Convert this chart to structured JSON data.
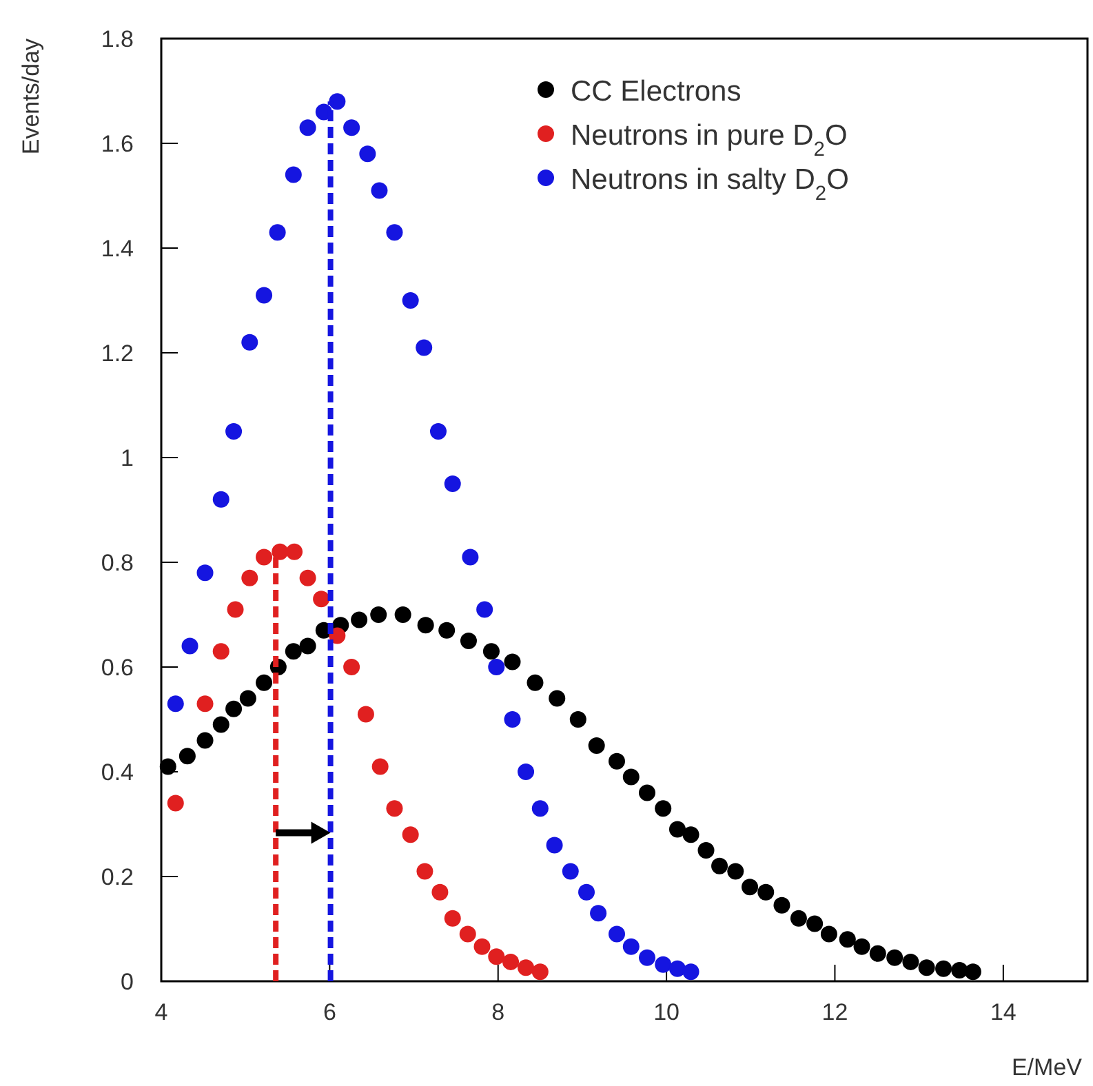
{
  "chart_data": {
    "type": "scatter",
    "xlabel": "E/MeV",
    "ylabel": "Events/day",
    "xlim": [
      4,
      15
    ],
    "xticks": [
      4,
      6,
      8,
      10,
      12,
      14
    ],
    "ylim": [
      0,
      1.8
    ],
    "yticks": [
      0,
      0.2,
      0.4,
      0.6,
      0.8,
      1,
      1.2,
      1.4,
      1.6,
      1.8
    ],
    "grid": false,
    "legend": "top right",
    "marker": "circle",
    "series": [
      {
        "name": "CC Electrons",
        "color": "#000000",
        "x": [
          4.08,
          4.31,
          4.52,
          4.71,
          4.86,
          5.03,
          5.22,
          5.39,
          5.57,
          5.74,
          5.93,
          6.13,
          6.35,
          6.58,
          6.87,
          7.14,
          7.39,
          7.65,
          7.92,
          8.17,
          8.44,
          8.7,
          8.95,
          9.17,
          9.41,
          9.58,
          9.77,
          9.96,
          10.13,
          10.29,
          10.47,
          10.63,
          10.82,
          10.99,
          11.18,
          11.37,
          11.57,
          11.76,
          11.93,
          12.15,
          12.32,
          12.51,
          12.71,
          12.9,
          13.09,
          13.29,
          13.48,
          13.64
        ],
        "values": [
          0.41,
          0.43,
          0.46,
          0.49,
          0.52,
          0.54,
          0.57,
          0.6,
          0.63,
          0.64,
          0.67,
          0.68,
          0.69,
          0.7,
          0.7,
          0.68,
          0.67,
          0.65,
          0.63,
          0.61,
          0.57,
          0.54,
          0.5,
          0.45,
          0.42,
          0.39,
          0.36,
          0.33,
          0.29,
          0.28,
          0.25,
          0.22,
          0.21,
          0.18,
          0.17,
          0.145,
          0.12,
          0.11,
          0.09,
          0.08,
          0.066,
          0.053,
          0.045,
          0.037,
          0.026,
          0.024,
          0.021,
          0.018
        ]
      },
      {
        "name": "Neutrons in pure D$_{2}$O",
        "color": "#e02020",
        "x": [
          4.17,
          4.52,
          4.71,
          4.88,
          5.05,
          5.22,
          5.41,
          5.58,
          5.74,
          5.9,
          6.09,
          6.26,
          6.43,
          6.6,
          6.77,
          6.96,
          7.13,
          7.31,
          7.46,
          7.64,
          7.81,
          7.98,
          8.15,
          8.33,
          8.5
        ],
        "values": [
          0.34,
          0.53,
          0.63,
          0.71,
          0.77,
          0.81,
          0.82,
          0.82,
          0.77,
          0.73,
          0.66,
          0.6,
          0.51,
          0.41,
          0.33,
          0.28,
          0.21,
          0.17,
          0.12,
          0.09,
          0.066,
          0.047,
          0.037,
          0.026,
          0.018
        ]
      },
      {
        "name": "Neutrons in salty D$_{2}$O",
        "color": "#1515e0",
        "x": [
          4.17,
          4.34,
          4.52,
          4.71,
          4.86,
          5.05,
          5.22,
          5.38,
          5.57,
          5.74,
          5.93,
          6.09,
          6.26,
          6.45,
          6.59,
          6.77,
          6.96,
          7.12,
          7.29,
          7.46,
          7.67,
          7.84,
          7.98,
          8.17,
          8.33,
          8.5,
          8.67,
          8.86,
          9.05,
          9.19,
          9.41,
          9.58,
          9.77,
          9.96,
          10.13,
          10.29
        ],
        "values": [
          0.53,
          0.64,
          0.78,
          0.92,
          1.05,
          1.22,
          1.31,
          1.43,
          1.54,
          1.63,
          1.66,
          1.68,
          1.63,
          1.58,
          1.51,
          1.43,
          1.3,
          1.21,
          1.05,
          0.95,
          0.81,
          0.71,
          0.6,
          0.5,
          0.4,
          0.33,
          0.26,
          0.21,
          0.17,
          0.13,
          0.09,
          0.066,
          0.045,
          0.032,
          0.024,
          0.018
        ]
      },
      {
        "type": "line",
        "color": "#e02020",
        "line_style": "dashed",
        "marker": "none",
        "x": [
          5.36,
          5.36
        ],
        "values": [
          0,
          0.81
        ]
      },
      {
        "type": "line",
        "color": "#1515e0",
        "line_style": "dashed",
        "marker": "none",
        "x": [
          6.01,
          6.01
        ],
        "values": [
          0,
          1.68
        ]
      }
    ]
  }
}
